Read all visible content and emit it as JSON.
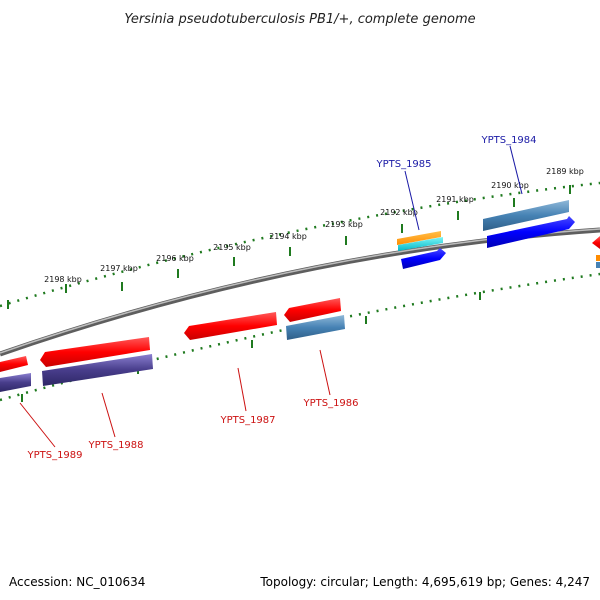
{
  "title": "Yersinia pseudotuberculosis PB1/+, complete genome",
  "footer": {
    "accession": "Accession: NC_010634",
    "summary": "Topology: circular; Length: 4,695,619 bp; Genes: 4,247"
  },
  "colors": {
    "backbone": "#8a8a8a",
    "ticks": "#1f7a1f",
    "forward_label": "#1a1aa6",
    "reverse_label": "#cc1111"
  },
  "ticks": [
    {
      "label": "2198 kbp"
    },
    {
      "label": "2197 kbp"
    },
    {
      "label": "2196 kbp"
    },
    {
      "label": "2195 kbp"
    },
    {
      "label": "2194 kbp"
    },
    {
      "label": "2193 kbp"
    },
    {
      "label": "2192 kbp"
    },
    {
      "label": "2191 kbp"
    },
    {
      "label": "2190 kbp"
    },
    {
      "label": "2189 kbp"
    }
  ],
  "gene_labels": [
    {
      "id": "YPTS_1985",
      "strand": "forward"
    },
    {
      "id": "YPTS_1984",
      "strand": "forward"
    },
    {
      "id": "YPTS_1989",
      "strand": "reverse"
    },
    {
      "id": "YPTS_1988",
      "strand": "reverse"
    },
    {
      "id": "YPTS_1987",
      "strand": "reverse"
    },
    {
      "id": "YPTS_1986",
      "strand": "reverse"
    }
  ]
}
